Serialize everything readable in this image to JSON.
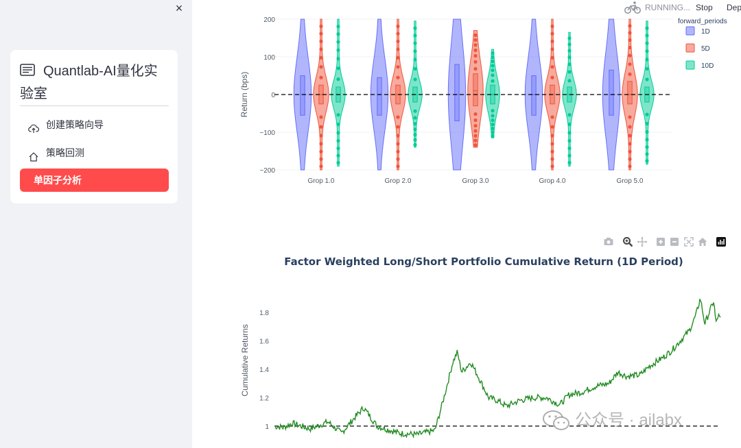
{
  "sidebar": {
    "close_label": "×",
    "title": "Quantlab-AI量化实验室",
    "items": [
      {
        "label": "创建策略向导",
        "icon": "cloud-upload-icon"
      },
      {
        "label": "策略回测",
        "icon": "home-icon"
      },
      {
        "label": "单因子分析",
        "active": true
      }
    ],
    "accent_color": "#ff4b4b"
  },
  "status_bar": {
    "running_text": "RUNNING...",
    "stop_label": "Stop",
    "deploy_label": "Depl"
  },
  "watermark": {
    "text": "公众号 · ailabx"
  },
  "chart_data": [
    {
      "type": "violin",
      "title": "",
      "ylabel": "Return (bps)",
      "ylim": [
        -200,
        200
      ],
      "yticks": [
        "200",
        "100",
        "0",
        "−100",
        "−200"
      ],
      "categories": [
        "Grop 1.0",
        "Grop 2.0",
        "Grop 3.0",
        "Grop 4.0",
        "Grop 5.0"
      ],
      "legend_title": "forward_periods",
      "series": [
        {
          "name": "1D",
          "color": "#636efa",
          "median": [
            0,
            0,
            0,
            0,
            0
          ],
          "q1": [
            -55,
            -55,
            -70,
            -55,
            -55
          ],
          "q3": [
            50,
            45,
            80,
            50,
            65
          ],
          "min": [
            -200,
            -200,
            -200,
            -200,
            -200
          ],
          "max": [
            200,
            200,
            200,
            200,
            200
          ]
        },
        {
          "name": "5D",
          "color": "#ef553b",
          "median": [
            0,
            0,
            10,
            0,
            0
          ],
          "q1": [
            -25,
            -25,
            -30,
            -25,
            -25
          ],
          "q3": [
            25,
            25,
            55,
            25,
            35
          ],
          "min": [
            -200,
            -200,
            -140,
            -200,
            -200
          ],
          "max": [
            200,
            200,
            170,
            200,
            200
          ]
        },
        {
          "name": "10D",
          "color": "#00cc96",
          "median": [
            0,
            0,
            0,
            0,
            0
          ],
          "q1": [
            -20,
            -20,
            -25,
            -20,
            -20
          ],
          "q3": [
            20,
            20,
            25,
            20,
            20
          ],
          "min": [
            -190,
            -140,
            -115,
            -190,
            -185
          ],
          "max": [
            200,
            195,
            120,
            165,
            195
          ]
        }
      ],
      "reference_line": 0
    },
    {
      "type": "line",
      "title": "Factor Weighted Long/Short Portfolio Cumulative Return (1D Period)",
      "xlabel": "",
      "ylabel": "Cumulative Returns",
      "ylim": [
        0.92,
        1.92
      ],
      "yticks": [
        "1",
        "1.2",
        "1.4",
        "1.6",
        "1.8"
      ],
      "line_color": "#228b22",
      "reference_line": 1,
      "anchors": [
        [
          0,
          1.0
        ],
        [
          0.02,
          0.99
        ],
        [
          0.04,
          1.02
        ],
        [
          0.08,
          0.98
        ],
        [
          0.12,
          1.03
        ],
        [
          0.15,
          0.95
        ],
        [
          0.18,
          1.06
        ],
        [
          0.2,
          1.13
        ],
        [
          0.23,
          1.0
        ],
        [
          0.26,
          0.97
        ],
        [
          0.28,
          0.95
        ],
        [
          0.32,
          0.94
        ],
        [
          0.36,
          0.97
        ],
        [
          0.38,
          1.2
        ],
        [
          0.4,
          1.45
        ],
        [
          0.41,
          1.52
        ],
        [
          0.42,
          1.38
        ],
        [
          0.44,
          1.45
        ],
        [
          0.46,
          1.33
        ],
        [
          0.48,
          1.2
        ],
        [
          0.5,
          1.18
        ],
        [
          0.52,
          1.14
        ],
        [
          0.55,
          1.18
        ],
        [
          0.58,
          1.2
        ],
        [
          0.61,
          1.2
        ],
        [
          0.64,
          1.15
        ],
        [
          0.66,
          1.22
        ],
        [
          0.69,
          1.24
        ],
        [
          0.72,
          1.28
        ],
        [
          0.75,
          1.3
        ],
        [
          0.77,
          1.38
        ],
        [
          0.79,
          1.35
        ],
        [
          0.82,
          1.36
        ],
        [
          0.84,
          1.42
        ],
        [
          0.87,
          1.48
        ],
        [
          0.89,
          1.53
        ],
        [
          0.91,
          1.6
        ],
        [
          0.93,
          1.67
        ],
        [
          0.945,
          1.78
        ],
        [
          0.955,
          1.9
        ],
        [
          0.965,
          1.72
        ],
        [
          0.975,
          1.8
        ],
        [
          0.985,
          1.88
        ],
        [
          0.99,
          1.72
        ],
        [
          0.995,
          1.78
        ],
        [
          1.0,
          1.75
        ]
      ]
    }
  ]
}
